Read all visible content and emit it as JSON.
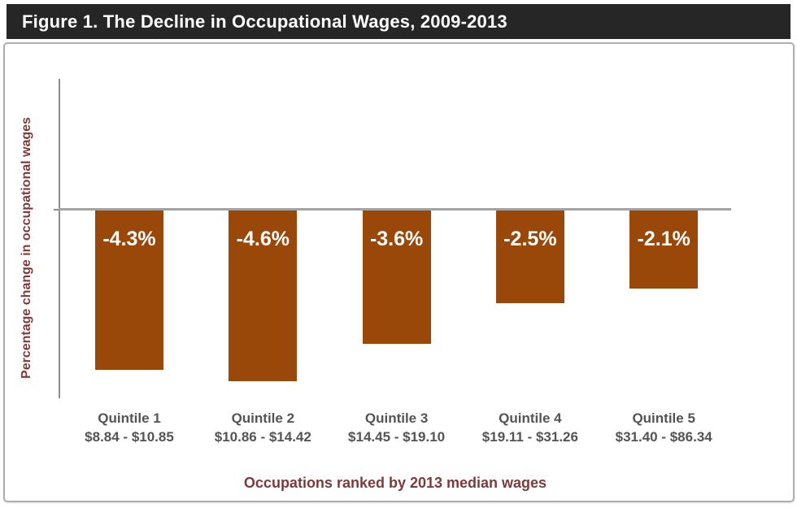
{
  "header": {
    "title": "Figure 1. The Decline in Occupational Wages, 2009-2013"
  },
  "chart_data": {
    "type": "bar",
    "title": "Figure 1. The Decline in Occupational Wages, 2009-2013",
    "xlabel": "Occupations ranked by 2013 median wages",
    "ylabel": "Percentage change in occupational wages",
    "categories": [
      "Quintile 1",
      "Quintile 2",
      "Quintile 3",
      "Quintile 4",
      "Quintile 5"
    ],
    "category_ranges": [
      "$8.84 - $10.85",
      "$10.86 - $14.42",
      "$14.45 - $19.10",
      "$19.11 - $31.26",
      "$31.40 - $86.34"
    ],
    "values": [
      -4.3,
      -4.6,
      -3.6,
      -2.5,
      -2.1
    ],
    "value_labels": [
      "-4.3%",
      "-4.6%",
      "-3.6%",
      "-2.5%",
      "-2.1%"
    ],
    "ylim": [
      -5.1,
      3.5
    ],
    "gridlines": false,
    "axis_tick_labels_shown": false,
    "legend_position": "none",
    "colors": {
      "bar_fill": "#99480A",
      "value_label_text": "#FFFFFF",
      "category_label_text": "#545454",
      "axis_title_text": "#7E3A3A",
      "y_axis_line": "#8C8C8C",
      "zero_line": "#A3A3A3",
      "header_bg": "#262626",
      "header_text": "#FFFFFF",
      "panel_border": "#AEAEAE"
    }
  }
}
